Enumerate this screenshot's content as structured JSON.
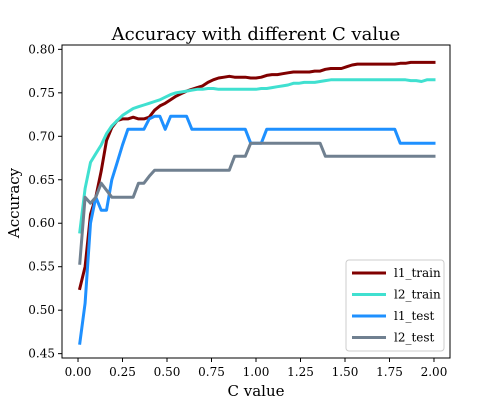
{
  "chart_data": {
    "type": "line",
    "title": "Accuracy with different C value",
    "xlabel": "C value",
    "ylabel": "Accuracy",
    "xlim": [
      -0.09,
      2.09
    ],
    "ylim": [
      0.445,
      0.805
    ],
    "xticks": [
      0.0,
      0.25,
      0.5,
      0.75,
      1.0,
      1.25,
      1.5,
      1.75,
      2.0
    ],
    "xtick_labels": [
      "0.00",
      "0.25",
      "0.50",
      "0.75",
      "1.00",
      "1.25",
      "1.50",
      "1.75",
      "2.00"
    ],
    "yticks": [
      0.45,
      0.5,
      0.55,
      0.6,
      0.65,
      0.7,
      0.75,
      0.8
    ],
    "ytick_labels": [
      "0.45",
      "0.50",
      "0.55",
      "0.60",
      "0.65",
      "0.70",
      "0.75",
      "0.80"
    ],
    "grid": false,
    "legend_position": "bottom-right",
    "x": [
      0.01,
      0.04,
      0.07,
      0.1,
      0.13,
      0.16,
      0.19,
      0.22,
      0.25,
      0.28,
      0.31,
      0.34,
      0.37,
      0.4,
      0.43,
      0.46,
      0.49,
      0.52,
      0.55,
      0.58,
      0.61,
      0.64,
      0.67,
      0.7,
      0.73,
      0.76,
      0.79,
      0.82,
      0.85,
      0.88,
      0.91,
      0.94,
      0.97,
      1.0,
      1.03,
      1.06,
      1.09,
      1.12,
      1.15,
      1.18,
      1.21,
      1.24,
      1.27,
      1.3,
      1.33,
      1.36,
      1.39,
      1.42,
      1.45,
      1.48,
      1.51,
      1.54,
      1.57,
      1.6,
      1.63,
      1.66,
      1.69,
      1.72,
      1.75,
      1.78,
      1.81,
      1.84,
      1.87,
      1.9,
      1.93,
      1.96,
      2.0
    ],
    "series": [
      {
        "name": "l1_train",
        "color": "#800000",
        "values": [
          0.525,
          0.55,
          0.61,
          0.63,
          0.66,
          0.695,
          0.71,
          0.718,
          0.72,
          0.72,
          0.722,
          0.72,
          0.72,
          0.722,
          0.73,
          0.735,
          0.738,
          0.742,
          0.746,
          0.749,
          0.752,
          0.754,
          0.756,
          0.758,
          0.762,
          0.765,
          0.767,
          0.768,
          0.769,
          0.768,
          0.768,
          0.768,
          0.767,
          0.767,
          0.768,
          0.77,
          0.771,
          0.771,
          0.772,
          0.773,
          0.774,
          0.774,
          0.774,
          0.774,
          0.775,
          0.775,
          0.777,
          0.778,
          0.778,
          0.778,
          0.78,
          0.782,
          0.783,
          0.783,
          0.783,
          0.783,
          0.783,
          0.783,
          0.783,
          0.783,
          0.784,
          0.784,
          0.785,
          0.785,
          0.785,
          0.785,
          0.785
        ]
      },
      {
        "name": "l2_train",
        "color": "#40e0d0",
        "values": [
          0.59,
          0.64,
          0.67,
          0.68,
          0.69,
          0.703,
          0.712,
          0.718,
          0.724,
          0.728,
          0.732,
          0.734,
          0.736,
          0.738,
          0.74,
          0.742,
          0.745,
          0.748,
          0.75,
          0.751,
          0.752,
          0.753,
          0.754,
          0.754,
          0.755,
          0.755,
          0.754,
          0.754,
          0.754,
          0.754,
          0.754,
          0.754,
          0.754,
          0.754,
          0.755,
          0.755,
          0.756,
          0.757,
          0.758,
          0.759,
          0.761,
          0.761,
          0.762,
          0.762,
          0.762,
          0.763,
          0.764,
          0.765,
          0.765,
          0.765,
          0.765,
          0.765,
          0.765,
          0.765,
          0.765,
          0.765,
          0.765,
          0.765,
          0.765,
          0.765,
          0.765,
          0.765,
          0.764,
          0.764,
          0.763,
          0.765,
          0.765
        ]
      },
      {
        "name": "l1_test",
        "color": "#1e90ff",
        "values": [
          0.462,
          0.508,
          0.6,
          0.63,
          0.615,
          0.615,
          0.65,
          0.67,
          0.69,
          0.708,
          0.708,
          0.708,
          0.708,
          0.72,
          0.723,
          0.723,
          0.708,
          0.723,
          0.723,
          0.723,
          0.723,
          0.708,
          0.708,
          0.708,
          0.708,
          0.708,
          0.708,
          0.708,
          0.708,
          0.708,
          0.708,
          0.708,
          0.692,
          0.692,
          0.692,
          0.708,
          0.708,
          0.708,
          0.708,
          0.708,
          0.708,
          0.708,
          0.708,
          0.708,
          0.708,
          0.708,
          0.708,
          0.708,
          0.708,
          0.708,
          0.708,
          0.708,
          0.708,
          0.708,
          0.708,
          0.708,
          0.708,
          0.708,
          0.708,
          0.708,
          0.692,
          0.692,
          0.692,
          0.692,
          0.692,
          0.692,
          0.692
        ]
      },
      {
        "name": "l2_test",
        "color": "#708090",
        "values": [
          0.554,
          0.63,
          0.623,
          0.63,
          0.646,
          0.638,
          0.63,
          0.63,
          0.63,
          0.63,
          0.63,
          0.646,
          0.646,
          0.654,
          0.661,
          0.661,
          0.661,
          0.661,
          0.661,
          0.661,
          0.661,
          0.661,
          0.661,
          0.661,
          0.661,
          0.661,
          0.661,
          0.661,
          0.661,
          0.677,
          0.677,
          0.677,
          0.692,
          0.692,
          0.692,
          0.692,
          0.692,
          0.692,
          0.692,
          0.692,
          0.692,
          0.692,
          0.692,
          0.692,
          0.692,
          0.692,
          0.677,
          0.677,
          0.677,
          0.677,
          0.677,
          0.677,
          0.677,
          0.677,
          0.677,
          0.677,
          0.677,
          0.677,
          0.677,
          0.677,
          0.677,
          0.677,
          0.677,
          0.677,
          0.677,
          0.677,
          0.677
        ]
      }
    ]
  }
}
